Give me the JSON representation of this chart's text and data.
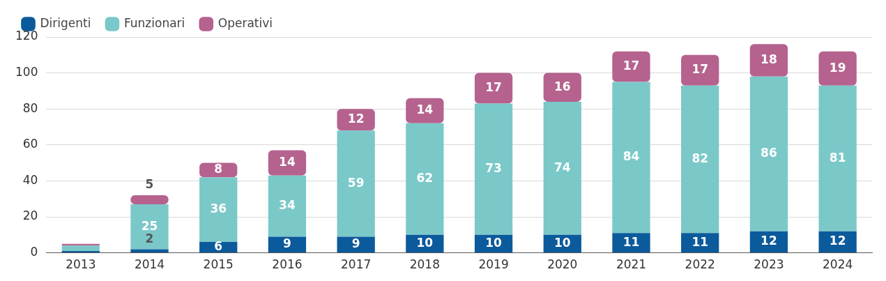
{
  "chart_data": {
    "type": "bar",
    "stacked": true,
    "legend": "top left",
    "grid": "y",
    "data_labels": true,
    "categories": [
      "2013",
      "2014",
      "2015",
      "2016",
      "2017",
      "2018",
      "2019",
      "2020",
      "2021",
      "2022",
      "2023",
      "2024"
    ],
    "ylim": [
      0,
      120
    ],
    "yticks": [
      0,
      20,
      40,
      60,
      80,
      100,
      120
    ],
    "series": [
      {
        "name": "Dirigenti",
        "color": "#0b5a9c",
        "values": [
          1,
          2,
          6,
          9,
          9,
          10,
          10,
          10,
          11,
          11,
          12,
          12
        ],
        "value_labels": [
          null,
          "2",
          "6",
          "9",
          "9",
          "10",
          "10",
          "10",
          "11",
          "11",
          "12",
          "12"
        ]
      },
      {
        "name": "Funzionari",
        "color": "#7bc8c9",
        "values": [
          3,
          25,
          36,
          34,
          59,
          62,
          73,
          74,
          84,
          82,
          86,
          81
        ],
        "value_labels": [
          null,
          "25",
          "36",
          "34",
          "59",
          "62",
          "73",
          "74",
          "84",
          "82",
          "86",
          "81"
        ]
      },
      {
        "name": "Operativi",
        "color": "#b5628e",
        "values": [
          1,
          5,
          8,
          14,
          12,
          14,
          17,
          16,
          17,
          17,
          18,
          19
        ],
        "value_labels": [
          null,
          "5",
          "8",
          "14",
          "12",
          "14",
          "17",
          "16",
          "17",
          "17",
          "18",
          "19"
        ]
      }
    ]
  }
}
